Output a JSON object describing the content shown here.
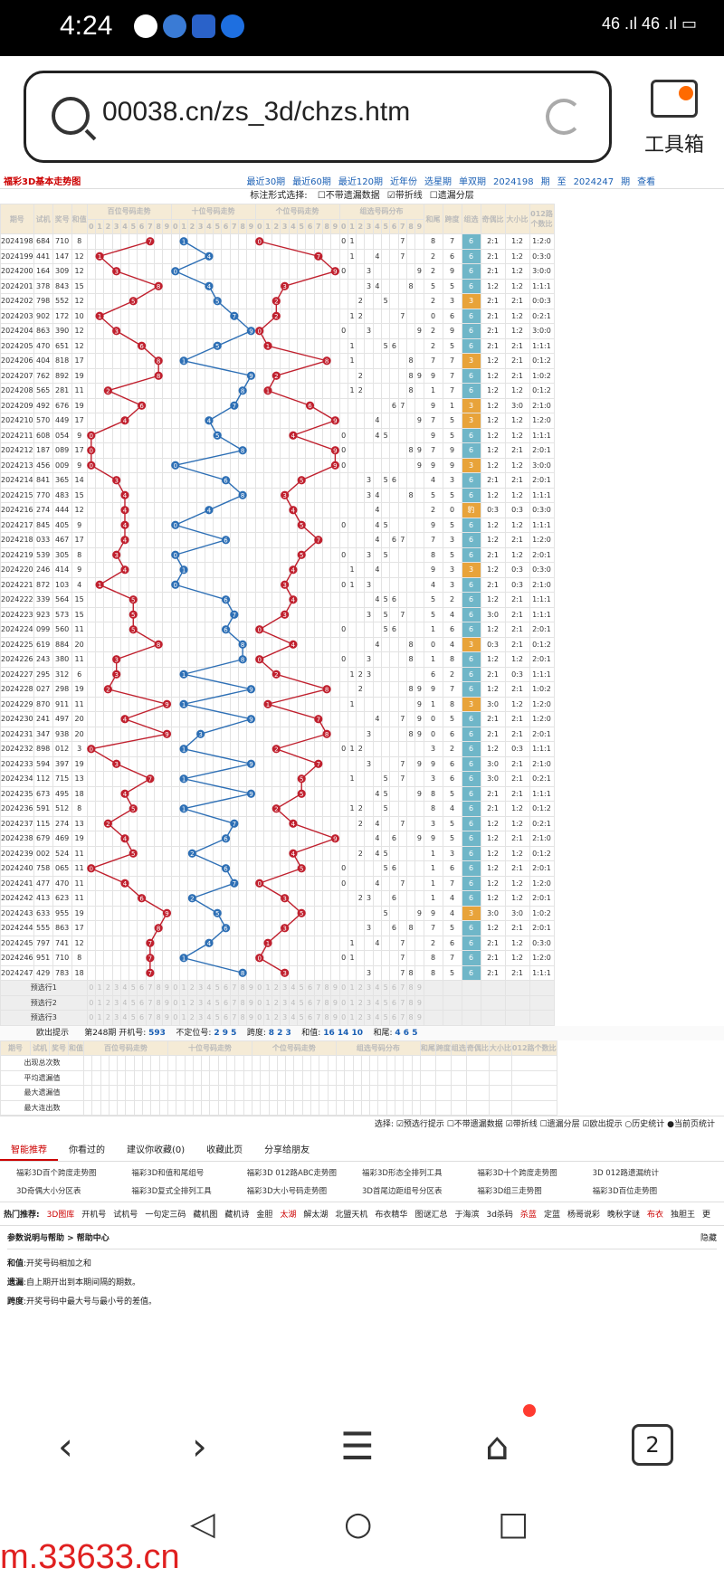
{
  "status": {
    "time": "4:24",
    "right": "46 .ıl 46 .ıl ▭"
  },
  "browser": {
    "url": "00038.cn/zs_3d/chzs.htm",
    "toolbox_label": "工具箱",
    "tab_count": "2"
  },
  "page": {
    "title": "福彩3D基本走势图",
    "top_links": [
      "最近30期",
      "最近60期",
      "最近120期",
      "近年份",
      "选星期",
      "单双期",
      "2024198",
      "期",
      "至",
      "2024247",
      "期",
      "查看"
    ],
    "options_label": "标注形式选择:",
    "options": [
      "不带遗漏数据",
      "带折线",
      "遗漏分层"
    ],
    "headers": [
      "期号",
      "试机",
      "奖号",
      "和值",
      "百位号码走势",
      "十位号码走势",
      "个位号码走势",
      "组选号码分布",
      "和尾",
      "跨度",
      "组选",
      "奇偶比",
      "大小比",
      "012路个数比"
    ],
    "digits": [
      "0",
      "1",
      "2",
      "3",
      "4",
      "5",
      "6",
      "7",
      "8",
      "9"
    ],
    "rows": [
      {
        "p": "2024198",
        "s": "684",
        "k": "710",
        "h": "8"
      },
      {
        "p": "2024199",
        "s": "441",
        "k": "147",
        "h": "12"
      },
      {
        "p": "2024200",
        "s": "164",
        "k": "309",
        "h": "12"
      },
      {
        "p": "2024201",
        "s": "378",
        "k": "843",
        "h": "15"
      },
      {
        "p": "2024202",
        "s": "798",
        "k": "552",
        "h": "12"
      },
      {
        "p": "2024203",
        "s": "902",
        "k": "172",
        "h": "10"
      },
      {
        "p": "2024204",
        "s": "863",
        "k": "390",
        "h": "12"
      },
      {
        "p": "2024205",
        "s": "470",
        "k": "651",
        "h": "12"
      },
      {
        "p": "2024206",
        "s": "404",
        "k": "818",
        "h": "17"
      },
      {
        "p": "2024207",
        "s": "762",
        "k": "892",
        "h": "19"
      },
      {
        "p": "2024208",
        "s": "565",
        "k": "281",
        "h": "11"
      },
      {
        "p": "2024209",
        "s": "492",
        "k": "676",
        "h": "19"
      },
      {
        "p": "2024210",
        "s": "570",
        "k": "449",
        "h": "17"
      },
      {
        "p": "2024211",
        "s": "608",
        "k": "054",
        "h": "9"
      },
      {
        "p": "2024212",
        "s": "187",
        "k": "089",
        "h": "17"
      },
      {
        "p": "2024213",
        "s": "456",
        "k": "009",
        "h": "9"
      },
      {
        "p": "2024214",
        "s": "841",
        "k": "365",
        "h": "14"
      },
      {
        "p": "2024215",
        "s": "770",
        "k": "483",
        "h": "15"
      },
      {
        "p": "2024216",
        "s": "274",
        "k": "444",
        "h": "12"
      },
      {
        "p": "2024217",
        "s": "845",
        "k": "405",
        "h": "9"
      },
      {
        "p": "2024218",
        "s": "033",
        "k": "467",
        "h": "17"
      },
      {
        "p": "2024219",
        "s": "539",
        "k": "305",
        "h": "8"
      },
      {
        "p": "2024220",
        "s": "246",
        "k": "414",
        "h": "9"
      },
      {
        "p": "2024221",
        "s": "872",
        "k": "103",
        "h": "4"
      },
      {
        "p": "2024222",
        "s": "339",
        "k": "564",
        "h": "15"
      },
      {
        "p": "2024223",
        "s": "923",
        "k": "573",
        "h": "15"
      },
      {
        "p": "2024224",
        "s": "099",
        "k": "560",
        "h": "11"
      },
      {
        "p": "2024225",
        "s": "619",
        "k": "884",
        "h": "20"
      },
      {
        "p": "2024226",
        "s": "243",
        "k": "380",
        "h": "11"
      },
      {
        "p": "2024227",
        "s": "295",
        "k": "312",
        "h": "6"
      },
      {
        "p": "2024228",
        "s": "027",
        "k": "298",
        "h": "19"
      },
      {
        "p": "2024229",
        "s": "870",
        "k": "911",
        "h": "11"
      },
      {
        "p": "2024230",
        "s": "241",
        "k": "497",
        "h": "20"
      },
      {
        "p": "2024231",
        "s": "347",
        "k": "938",
        "h": "20"
      },
      {
        "p": "2024232",
        "s": "898",
        "k": "012",
        "h": "3"
      },
      {
        "p": "2024233",
        "s": "594",
        "k": "397",
        "h": "19"
      },
      {
        "p": "2024234",
        "s": "112",
        "k": "715",
        "h": "13"
      },
      {
        "p": "2024235",
        "s": "673",
        "k": "495",
        "h": "18"
      },
      {
        "p": "2024236",
        "s": "591",
        "k": "512",
        "h": "8"
      },
      {
        "p": "2024237",
        "s": "115",
        "k": "274",
        "h": "13"
      },
      {
        "p": "2024238",
        "s": "679",
        "k": "469",
        "h": "19"
      },
      {
        "p": "2024239",
        "s": "002",
        "k": "524",
        "h": "11"
      },
      {
        "p": "2024240",
        "s": "758",
        "k": "065",
        "h": "11"
      },
      {
        "p": "2024241",
        "s": "477",
        "k": "470",
        "h": "11"
      },
      {
        "p": "2024242",
        "s": "413",
        "k": "623",
        "h": "11"
      },
      {
        "p": "2024243",
        "s": "633",
        "k": "955",
        "h": "19"
      },
      {
        "p": "2024244",
        "s": "555",
        "k": "863",
        "h": "17"
      },
      {
        "p": "2024245",
        "s": "797",
        "k": "741",
        "h": "12"
      },
      {
        "p": "2024246",
        "s": "951",
        "k": "710",
        "h": "8"
      },
      {
        "p": "2024247",
        "s": "429",
        "k": "783",
        "h": "18"
      }
    ],
    "predict_labels": [
      "预选行1",
      "预选行2",
      "预选行3"
    ],
    "prompt": {
      "label": "欧出提示",
      "issue": "第248期 开机号:",
      "kjh": "593",
      "dw_label": "不定位号:",
      "dw": "2 9 5",
      "kd_label": "跨度:",
      "kd": "8 2 3",
      "hz_label": "和值:",
      "hz": "16 14 10",
      "hw_label": "和尾:",
      "hw": "4 6 5"
    },
    "stats_labels": [
      "出现总次数",
      "平均遗漏值",
      "最大遗漏值",
      "最大连出数"
    ],
    "select_bar": "选择: ☑预选行提示 ☐不带遗漏数据 ☑带折线 ☐遗漏分层 ☑欧出提示 ○历史统计 ●当前页统计",
    "tabs": [
      "智能推荐",
      "你看过的",
      "建议你收藏(0)",
      "收藏此页",
      "分享给朋友"
    ],
    "links": [
      "福彩3D百个跨度走势图",
      "福彩3D和值和尾组号",
      "福彩3D 012路ABC走势图",
      "福彩3D形态全排列工具",
      "福彩3D十个跨度走势图",
      "3D 012路遗漏统计",
      "3D奇偶大小分区表",
      "福彩3D复式全排列工具",
      "福彩3D大小号码走势图",
      "3D首尾边距组号分区表",
      "福彩3D组三走势图",
      "福彩3D百位走势图"
    ],
    "hot_label": "热门推荐:",
    "hot": [
      "3D图库",
      "开机号",
      "试机号",
      "一句定三码",
      "藏机图",
      "藏机诗",
      "金胆",
      "太湖",
      "解太湖",
      "北盟天机",
      "布衣精华",
      "图谜汇总",
      "于海滨",
      "3d杀码",
      "杀蓝",
      "定蓝",
      "杨哥说彩",
      "晚秋字谜",
      "布衣",
      "独胆王",
      "更"
    ],
    "help": {
      "title": "参数说明与帮助 > 帮助中心",
      "hide": "隐藏",
      "items": [
        {
          "k": "和值",
          "v": ":开奖号码相加之和"
        },
        {
          "k": "遗漏",
          "v": ":自上期开出到本期间隔的期数。"
        },
        {
          "k": "跨度",
          "v": ":开奖号码中最大号与最小号的差值。"
        }
      ]
    }
  },
  "watermark": "m.33633.cn",
  "colors": {
    "red": "#c0202e",
    "blue": "#2d6fb5",
    "header": "#f5ebd6"
  }
}
